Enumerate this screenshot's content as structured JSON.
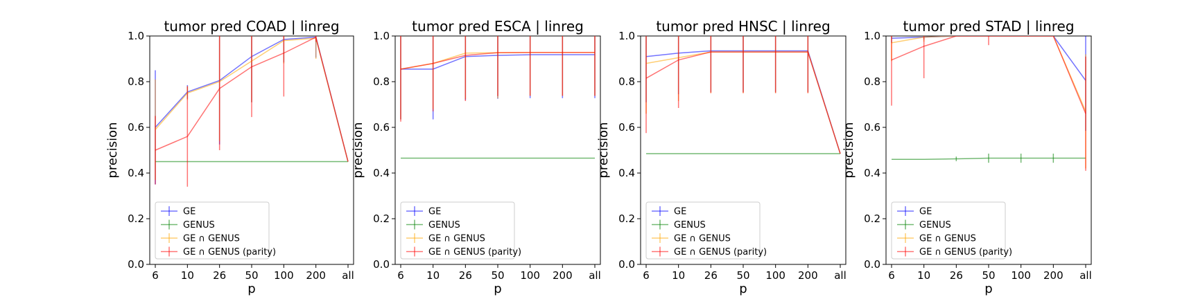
{
  "chart_data": [
    {
      "type": "line",
      "title": "tumor pred COAD | linreg",
      "xlabel": "p",
      "ylabel": "precision",
      "categories": [
        "6",
        "10",
        "26",
        "50",
        "100",
        "200",
        "all"
      ],
      "ylim": [
        0,
        1
      ],
      "yticks": [
        "0.0",
        "0.2",
        "0.4",
        "0.6",
        "0.8",
        "1.0"
      ],
      "legend": "lower-left",
      "series": [
        {
          "name": "GE",
          "color": "#0000ff",
          "values": [
            0.6,
            0.755,
            0.805,
            0.91,
            0.985,
            0.995,
            0.45
          ],
          "err": [
            0.25,
            0.03,
            0.28,
            0.2,
            0.1,
            0.09,
            0.0
          ]
        },
        {
          "name": "GENUS",
          "color": "#008000",
          "values": [
            0.45,
            0.45,
            0.45,
            0.45,
            0.45,
            0.45,
            0.45
          ],
          "err": [
            0.0,
            0.0,
            0.0,
            0.0,
            0.0,
            0.0,
            0.0
          ]
        },
        {
          "name": "GE ∩ GENUS",
          "color": "#ffa500",
          "values": [
            0.59,
            0.75,
            0.8,
            0.89,
            0.98,
            0.99,
            0.45
          ],
          "err": [
            0.22,
            0.03,
            0.26,
            0.18,
            0.1,
            0.09,
            0.0
          ]
        },
        {
          "name": "GE ∩ GENUS (parity)",
          "color": "#ff0000",
          "values": [
            0.5,
            0.56,
            0.77,
            0.865,
            0.925,
            0.995,
            0.45
          ],
          "err": [
            0.15,
            0.22,
            0.27,
            0.22,
            0.19,
            0.02,
            0.0
          ]
        }
      ]
    },
    {
      "type": "line",
      "title": "tumor pred ESCA | linreg",
      "xlabel": "p",
      "ylabel": "precision",
      "categories": [
        "6",
        "10",
        "26",
        "50",
        "100",
        "200",
        "all"
      ],
      "ylim": [
        0,
        1
      ],
      "yticks": [
        "0.0",
        "0.2",
        "0.4",
        "0.6",
        "0.8",
        "1.0"
      ],
      "legend": "lower-left",
      "series": [
        {
          "name": "GE",
          "color": "#0000ff",
          "values": [
            0.855,
            0.855,
            0.91,
            0.915,
            0.918,
            0.918,
            0.918
          ],
          "err": [
            0.22,
            0.22,
            0.19,
            0.19,
            0.19,
            0.19,
            0.19
          ]
        },
        {
          "name": "GENUS",
          "color": "#008000",
          "values": [
            0.465,
            0.465,
            0.465,
            0.465,
            0.465,
            0.465,
            0.465
          ],
          "err": [
            0.0,
            0.0,
            0.0,
            0.0,
            0.0,
            0.0,
            0.0
          ]
        },
        {
          "name": "GE ∩ GENUS",
          "color": "#ffa500",
          "values": [
            0.855,
            0.88,
            0.925,
            0.927,
            0.928,
            0.928,
            0.928
          ],
          "err": [
            0.22,
            0.2,
            0.2,
            0.2,
            0.19,
            0.19,
            0.19
          ]
        },
        {
          "name": "GE ∩ GENUS (parity)",
          "color": "#ff0000",
          "values": [
            0.855,
            0.88,
            0.915,
            0.927,
            0.928,
            0.928,
            0.928
          ],
          "err": [
            0.23,
            0.21,
            0.2,
            0.19,
            0.19,
            0.19,
            0.19
          ]
        }
      ]
    },
    {
      "type": "line",
      "title": "tumor pred HNSC | linreg",
      "xlabel": "p",
      "ylabel": "precision",
      "categories": [
        "6",
        "10",
        "26",
        "50",
        "100",
        "200",
        "all"
      ],
      "ylim": [
        0,
        1
      ],
      "yticks": [
        "0.0",
        "0.2",
        "0.4",
        "0.6",
        "0.8",
        "1.0"
      ],
      "legend": "lower-left",
      "series": [
        {
          "name": "GE",
          "color": "#0000ff",
          "values": [
            0.91,
            0.925,
            0.935,
            0.935,
            0.935,
            0.935,
            0.485
          ],
          "err": [
            0.2,
            0.18,
            0.18,
            0.18,
            0.18,
            0.18,
            0.0
          ]
        },
        {
          "name": "GENUS",
          "color": "#008000",
          "values": [
            0.485,
            0.485,
            0.485,
            0.485,
            0.485,
            0.485,
            0.485
          ],
          "err": [
            0.0,
            0.0,
            0.0,
            0.0,
            0.0,
            0.0,
            0.0
          ]
        },
        {
          "name": "GE ∩ GENUS",
          "color": "#ffa500",
          "values": [
            0.88,
            0.905,
            0.93,
            0.93,
            0.93,
            0.93,
            0.485
          ],
          "err": [
            0.22,
            0.19,
            0.18,
            0.18,
            0.18,
            0.18,
            0.0
          ]
        },
        {
          "name": "GE ∩ GENUS (parity)",
          "color": "#ff0000",
          "values": [
            0.815,
            0.895,
            0.93,
            0.93,
            0.93,
            0.93,
            0.485
          ],
          "err": [
            0.24,
            0.21,
            0.18,
            0.18,
            0.18,
            0.18,
            0.0
          ]
        }
      ]
    },
    {
      "type": "line",
      "title": "tumor pred STAD | linreg",
      "xlabel": "p",
      "ylabel": "precision",
      "categories": [
        "6",
        "10",
        "26",
        "50",
        "100",
        "200",
        "all"
      ],
      "ylim": [
        0,
        1
      ],
      "yticks": [
        "0.0",
        "0.2",
        "0.4",
        "0.6",
        "0.8",
        "1.0"
      ],
      "legend": "lower-left",
      "series": [
        {
          "name": "GE",
          "color": "#0000ff",
          "values": [
            0.99,
            0.995,
            1.0,
            1.0,
            1.0,
            1.0,
            0.805
          ],
          "err": [
            0.02,
            0.01,
            0.0,
            0.0,
            0.0,
            0.0,
            0.22
          ]
        },
        {
          "name": "GENUS",
          "color": "#008000",
          "values": [
            0.46,
            0.46,
            0.462,
            0.465,
            0.465,
            0.465,
            0.465
          ],
          "err": [
            0.0,
            0.0,
            0.01,
            0.02,
            0.02,
            0.02,
            0.0
          ]
        },
        {
          "name": "GE ∩ GENUS",
          "color": "#ffa500",
          "values": [
            0.97,
            0.995,
            1.0,
            1.0,
            1.0,
            1.0,
            0.67
          ],
          "err": [
            0.08,
            0.02,
            0.0,
            0.0,
            0.0,
            0.0,
            0.25
          ]
        },
        {
          "name": "GE ∩ GENUS (parity)",
          "color": "#ff0000",
          "values": [
            0.895,
            0.955,
            1.0,
            1.0,
            1.0,
            1.0,
            0.66
          ],
          "err": [
            0.2,
            0.14,
            0.0,
            0.04,
            0.0,
            0.0,
            0.25
          ]
        }
      ]
    }
  ]
}
